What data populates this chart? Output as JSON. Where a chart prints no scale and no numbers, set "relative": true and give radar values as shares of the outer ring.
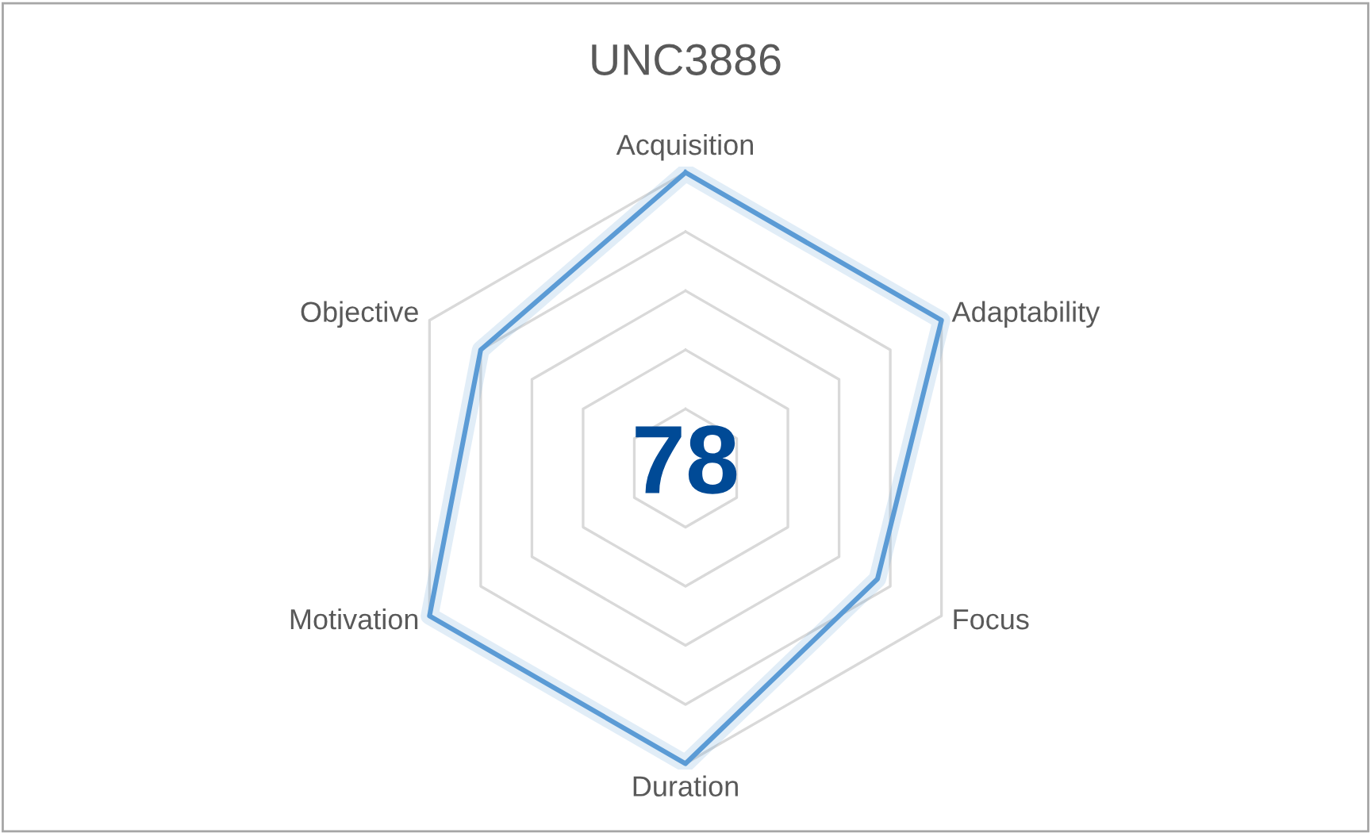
{
  "chart_data": {
    "type": "radar",
    "title": "UNC3886",
    "relative": true,
    "grid": true,
    "marker": "none",
    "categories": [
      "Acquisition",
      "Adaptability",
      "Focus",
      "Duration",
      "Motivation",
      "Objective"
    ],
    "series": [
      {
        "color": "#5b9bd5",
        "values": [
          1,
          1,
          0.75,
          1,
          1,
          0.8
        ]
      }
    ],
    "annotations": [
      "78"
    ]
  }
}
